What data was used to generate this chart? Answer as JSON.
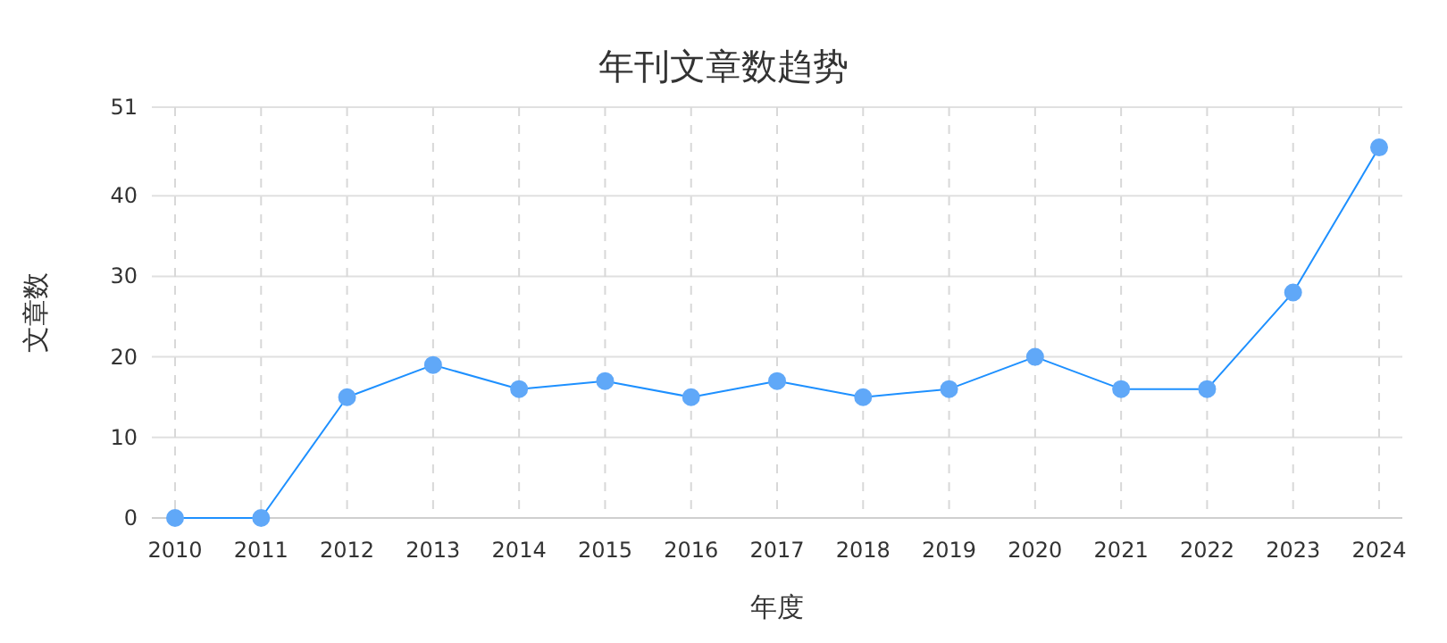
{
  "chart_data": {
    "type": "line",
    "title": "年刊文章数趋势",
    "xlabel": "年度",
    "ylabel": "文章数",
    "categories": [
      "2010",
      "2011",
      "2012",
      "2013",
      "2014",
      "2015",
      "2016",
      "2017",
      "2018",
      "2019",
      "2020",
      "2021",
      "2022",
      "2023",
      "2024"
    ],
    "series": [
      {
        "color": "#1e90ff",
        "values": [
          0,
          0,
          15,
          19,
          16,
          17,
          15,
          17,
          15,
          16,
          20,
          16,
          16,
          28,
          46
        ]
      }
    ],
    "ylim": [
      0,
      51
    ],
    "yticks": [
      0,
      10,
      20,
      30,
      40,
      51
    ],
    "grid": true,
    "marker": "circle",
    "line_style": "solid"
  }
}
